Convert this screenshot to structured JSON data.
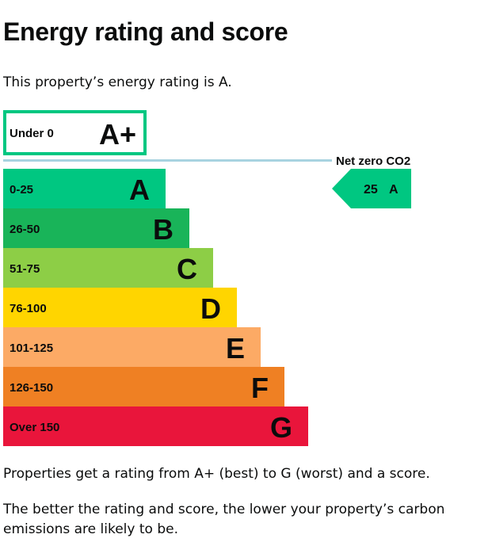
{
  "page": {
    "heading": "Energy rating and score",
    "intro": "This property’s energy rating is A.",
    "para1": "Properties get a rating from A+ (best) to G (worst) and a score.",
    "para2": "The better the rating and score, the lower your property’s carbon emissions are likely to be."
  },
  "chart_data": {
    "type": "bar",
    "orientation": "horizontal",
    "bands": [
      {
        "letter": "A+",
        "range": "Under 0",
        "color": "#00c781"
      },
      {
        "letter": "A",
        "range": "0-25",
        "color": "#00c781"
      },
      {
        "letter": "B",
        "range": "26-50",
        "color": "#19b459"
      },
      {
        "letter": "C",
        "range": "51-75",
        "color": "#8dce46"
      },
      {
        "letter": "D",
        "range": "76-100",
        "color": "#ffd500"
      },
      {
        "letter": "E",
        "range": "101-125",
        "color": "#fcaa65"
      },
      {
        "letter": "F",
        "range": "126-150",
        "color": "#ef8023"
      },
      {
        "letter": "G",
        "range": "Over 150",
        "color": "#e9153b"
      }
    ],
    "net_zero_label": "Net zero CO2",
    "net_zero_line_color": "#a8d3e0",
    "current": {
      "score": 25,
      "letter": "A",
      "band": "A"
    }
  }
}
